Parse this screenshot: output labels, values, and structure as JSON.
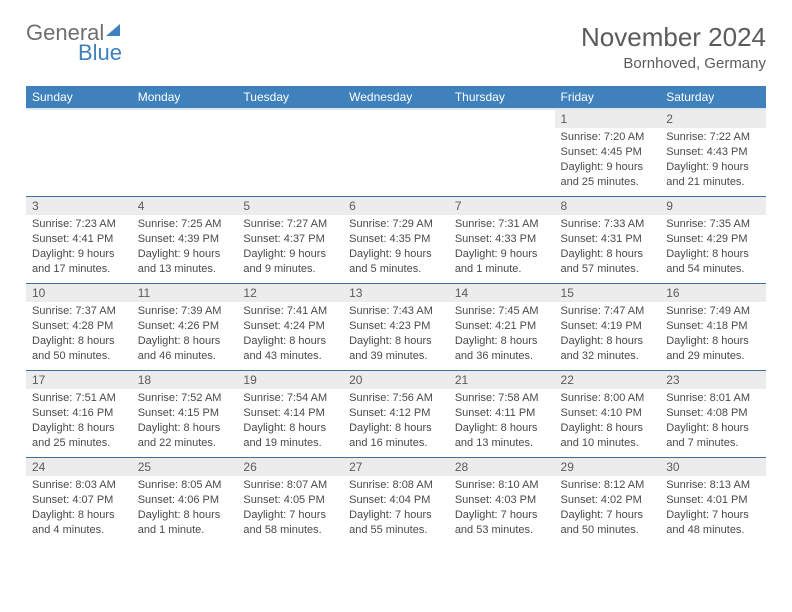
{
  "logo": {
    "part1": "General",
    "part2": "Blue"
  },
  "title": "November 2024",
  "subtitle": "Bornhoved, Germany",
  "colors": {
    "header_bg": "#3f81bd",
    "header_text": "#ffffff",
    "daynum_bg": "#ececec",
    "text": "#5b5b5b",
    "row_border": "#3f6f9d"
  },
  "weekdays": [
    "Sunday",
    "Monday",
    "Tuesday",
    "Wednesday",
    "Thursday",
    "Friday",
    "Saturday"
  ],
  "weeks": [
    [
      {
        "n": "",
        "sr": "",
        "ss": "",
        "dl": ""
      },
      {
        "n": "",
        "sr": "",
        "ss": "",
        "dl": ""
      },
      {
        "n": "",
        "sr": "",
        "ss": "",
        "dl": ""
      },
      {
        "n": "",
        "sr": "",
        "ss": "",
        "dl": ""
      },
      {
        "n": "",
        "sr": "",
        "ss": "",
        "dl": ""
      },
      {
        "n": "1",
        "sr": "Sunrise: 7:20 AM",
        "ss": "Sunset: 4:45 PM",
        "dl": "Daylight: 9 hours and 25 minutes."
      },
      {
        "n": "2",
        "sr": "Sunrise: 7:22 AM",
        "ss": "Sunset: 4:43 PM",
        "dl": "Daylight: 9 hours and 21 minutes."
      }
    ],
    [
      {
        "n": "3",
        "sr": "Sunrise: 7:23 AM",
        "ss": "Sunset: 4:41 PM",
        "dl": "Daylight: 9 hours and 17 minutes."
      },
      {
        "n": "4",
        "sr": "Sunrise: 7:25 AM",
        "ss": "Sunset: 4:39 PM",
        "dl": "Daylight: 9 hours and 13 minutes."
      },
      {
        "n": "5",
        "sr": "Sunrise: 7:27 AM",
        "ss": "Sunset: 4:37 PM",
        "dl": "Daylight: 9 hours and 9 minutes."
      },
      {
        "n": "6",
        "sr": "Sunrise: 7:29 AM",
        "ss": "Sunset: 4:35 PM",
        "dl": "Daylight: 9 hours and 5 minutes."
      },
      {
        "n": "7",
        "sr": "Sunrise: 7:31 AM",
        "ss": "Sunset: 4:33 PM",
        "dl": "Daylight: 9 hours and 1 minute."
      },
      {
        "n": "8",
        "sr": "Sunrise: 7:33 AM",
        "ss": "Sunset: 4:31 PM",
        "dl": "Daylight: 8 hours and 57 minutes."
      },
      {
        "n": "9",
        "sr": "Sunrise: 7:35 AM",
        "ss": "Sunset: 4:29 PM",
        "dl": "Daylight: 8 hours and 54 minutes."
      }
    ],
    [
      {
        "n": "10",
        "sr": "Sunrise: 7:37 AM",
        "ss": "Sunset: 4:28 PM",
        "dl": "Daylight: 8 hours and 50 minutes."
      },
      {
        "n": "11",
        "sr": "Sunrise: 7:39 AM",
        "ss": "Sunset: 4:26 PM",
        "dl": "Daylight: 8 hours and 46 minutes."
      },
      {
        "n": "12",
        "sr": "Sunrise: 7:41 AM",
        "ss": "Sunset: 4:24 PM",
        "dl": "Daylight: 8 hours and 43 minutes."
      },
      {
        "n": "13",
        "sr": "Sunrise: 7:43 AM",
        "ss": "Sunset: 4:23 PM",
        "dl": "Daylight: 8 hours and 39 minutes."
      },
      {
        "n": "14",
        "sr": "Sunrise: 7:45 AM",
        "ss": "Sunset: 4:21 PM",
        "dl": "Daylight: 8 hours and 36 minutes."
      },
      {
        "n": "15",
        "sr": "Sunrise: 7:47 AM",
        "ss": "Sunset: 4:19 PM",
        "dl": "Daylight: 8 hours and 32 minutes."
      },
      {
        "n": "16",
        "sr": "Sunrise: 7:49 AM",
        "ss": "Sunset: 4:18 PM",
        "dl": "Daylight: 8 hours and 29 minutes."
      }
    ],
    [
      {
        "n": "17",
        "sr": "Sunrise: 7:51 AM",
        "ss": "Sunset: 4:16 PM",
        "dl": "Daylight: 8 hours and 25 minutes."
      },
      {
        "n": "18",
        "sr": "Sunrise: 7:52 AM",
        "ss": "Sunset: 4:15 PM",
        "dl": "Daylight: 8 hours and 22 minutes."
      },
      {
        "n": "19",
        "sr": "Sunrise: 7:54 AM",
        "ss": "Sunset: 4:14 PM",
        "dl": "Daylight: 8 hours and 19 minutes."
      },
      {
        "n": "20",
        "sr": "Sunrise: 7:56 AM",
        "ss": "Sunset: 4:12 PM",
        "dl": "Daylight: 8 hours and 16 minutes."
      },
      {
        "n": "21",
        "sr": "Sunrise: 7:58 AM",
        "ss": "Sunset: 4:11 PM",
        "dl": "Daylight: 8 hours and 13 minutes."
      },
      {
        "n": "22",
        "sr": "Sunrise: 8:00 AM",
        "ss": "Sunset: 4:10 PM",
        "dl": "Daylight: 8 hours and 10 minutes."
      },
      {
        "n": "23",
        "sr": "Sunrise: 8:01 AM",
        "ss": "Sunset: 4:08 PM",
        "dl": "Daylight: 8 hours and 7 minutes."
      }
    ],
    [
      {
        "n": "24",
        "sr": "Sunrise: 8:03 AM",
        "ss": "Sunset: 4:07 PM",
        "dl": "Daylight: 8 hours and 4 minutes."
      },
      {
        "n": "25",
        "sr": "Sunrise: 8:05 AM",
        "ss": "Sunset: 4:06 PM",
        "dl": "Daylight: 8 hours and 1 minute."
      },
      {
        "n": "26",
        "sr": "Sunrise: 8:07 AM",
        "ss": "Sunset: 4:05 PM",
        "dl": "Daylight: 7 hours and 58 minutes."
      },
      {
        "n": "27",
        "sr": "Sunrise: 8:08 AM",
        "ss": "Sunset: 4:04 PM",
        "dl": "Daylight: 7 hours and 55 minutes."
      },
      {
        "n": "28",
        "sr": "Sunrise: 8:10 AM",
        "ss": "Sunset: 4:03 PM",
        "dl": "Daylight: 7 hours and 53 minutes."
      },
      {
        "n": "29",
        "sr": "Sunrise: 8:12 AM",
        "ss": "Sunset: 4:02 PM",
        "dl": "Daylight: 7 hours and 50 minutes."
      },
      {
        "n": "30",
        "sr": "Sunrise: 8:13 AM",
        "ss": "Sunset: 4:01 PM",
        "dl": "Daylight: 7 hours and 48 minutes."
      }
    ]
  ]
}
